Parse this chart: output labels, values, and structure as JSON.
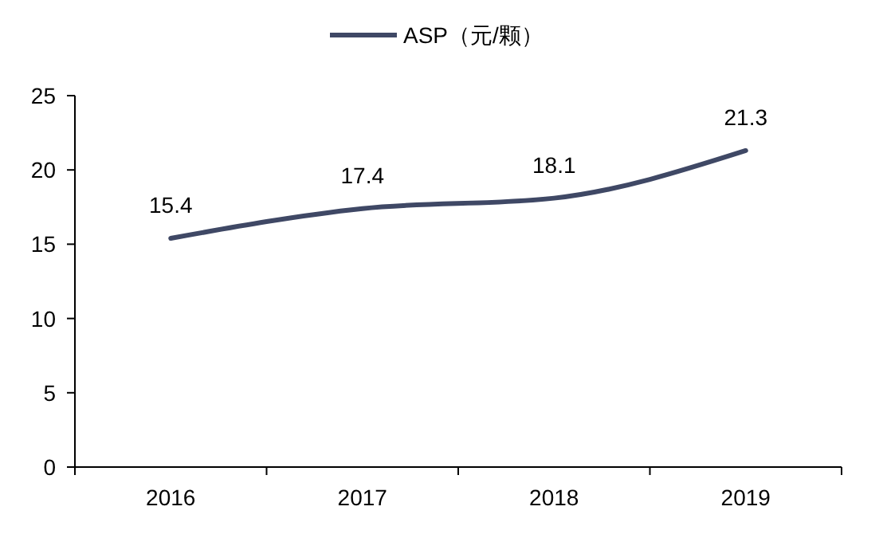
{
  "chart_data": {
    "type": "line",
    "categories": [
      "2016",
      "2017",
      "2018",
      "2019"
    ],
    "series": [
      {
        "name": "ASP（元/颗）",
        "color": "#3f4865",
        "values": [
          15.4,
          17.4,
          18.1,
          21.3
        ]
      }
    ],
    "ylim": [
      0,
      25
    ],
    "yticks": [
      0,
      5,
      10,
      15,
      20,
      25
    ],
    "grid": false,
    "legend": "top",
    "data_labels": true,
    "marker": "none",
    "line_style": "solid"
  }
}
